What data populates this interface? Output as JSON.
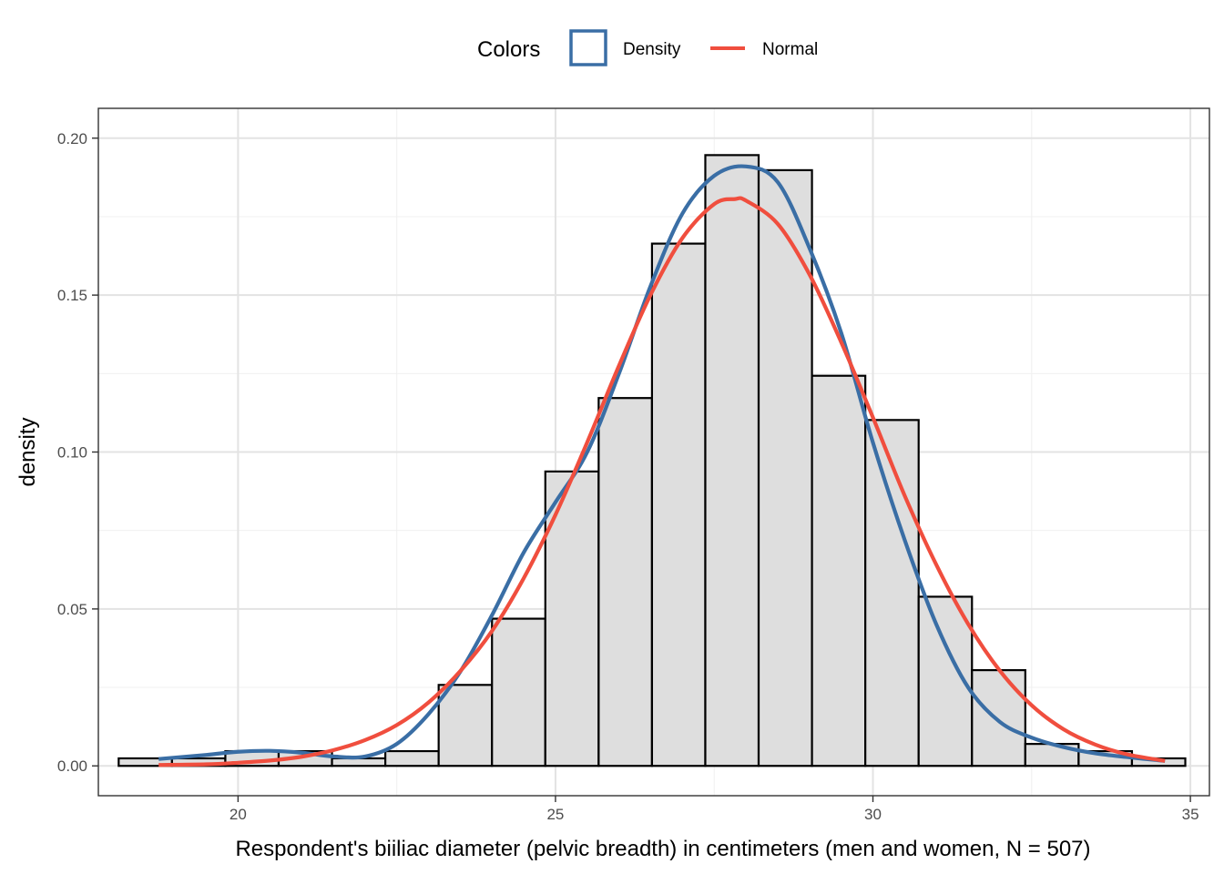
{
  "chart_data": {
    "type": "bar",
    "xlabel": "Respondent's biiliac diameter (pelvic breadth) in centimeters (men and women, N = 507)",
    "ylabel": "density",
    "xlim": [
      17.8,
      35.3
    ],
    "ylim": [
      -0.0095,
      0.2095
    ],
    "x_ticks": [
      20,
      25,
      30,
      35
    ],
    "x_tick_labels": [
      "20",
      "25",
      "30",
      "35"
    ],
    "y_ticks": [
      0.0,
      0.05,
      0.1,
      0.15,
      0.2
    ],
    "y_tick_labels": [
      "0.00",
      "0.05",
      "0.10",
      "0.15",
      "0.20"
    ],
    "grid": true,
    "legend": {
      "title": "Colors",
      "placement": "top",
      "items": [
        {
          "label": "Density",
          "color": "#3a6ea5",
          "symbol": "box"
        },
        {
          "label": "Normal",
          "color": "#f04e3e",
          "symbol": "line"
        }
      ]
    },
    "bin_width": 0.84,
    "bars": [
      {
        "x0": 18.12,
        "x1": 18.96,
        "y": 0.0024
      },
      {
        "x0": 18.96,
        "x1": 19.8,
        "y": 0.0024
      },
      {
        "x0": 19.8,
        "x1": 20.64,
        "y": 0.0047
      },
      {
        "x0": 20.64,
        "x1": 21.48,
        "y": 0.0047
      },
      {
        "x0": 21.48,
        "x1": 22.32,
        "y": 0.0024
      },
      {
        "x0": 22.32,
        "x1": 23.16,
        "y": 0.0047
      },
      {
        "x0": 23.16,
        "x1": 24.0,
        "y": 0.0258
      },
      {
        "x0": 24.0,
        "x1": 24.84,
        "y": 0.0469
      },
      {
        "x0": 24.84,
        "x1": 25.68,
        "y": 0.0938
      },
      {
        "x0": 25.68,
        "x1": 26.52,
        "y": 0.1172
      },
      {
        "x0": 26.52,
        "x1": 27.36,
        "y": 0.1664
      },
      {
        "x0": 27.36,
        "x1": 28.2,
        "y": 0.1946
      },
      {
        "x0": 28.2,
        "x1": 29.04,
        "y": 0.1898
      },
      {
        "x0": 29.04,
        "x1": 29.88,
        "y": 0.1243
      },
      {
        "x0": 29.88,
        "x1": 30.72,
        "y": 0.1102
      },
      {
        "x0": 30.72,
        "x1": 31.56,
        "y": 0.0539
      },
      {
        "x0": 31.56,
        "x1": 32.4,
        "y": 0.0305
      },
      {
        "x0": 32.4,
        "x1": 33.24,
        "y": 0.007
      },
      {
        "x0": 33.24,
        "x1": 34.08,
        "y": 0.0047
      },
      {
        "x0": 34.08,
        "x1": 34.92,
        "y": 0.0024
      }
    ],
    "series": [
      {
        "name": "Density",
        "color": "#3a6ea5",
        "x": [
          18.75,
          19.5,
          20.0,
          20.5,
          21.0,
          21.5,
          22.0,
          22.5,
          23.0,
          23.5,
          24.0,
          24.5,
          25.0,
          25.5,
          26.0,
          26.5,
          27.0,
          27.5,
          28.0,
          28.5,
          29.0,
          29.5,
          30.0,
          30.5,
          31.0,
          31.5,
          32.0,
          32.5,
          33.0,
          33.5,
          34.0,
          34.6
        ],
        "y": [
          0.0022,
          0.0035,
          0.0045,
          0.0048,
          0.0042,
          0.003,
          0.003,
          0.007,
          0.0165,
          0.03,
          0.048,
          0.068,
          0.084,
          0.1,
          0.125,
          0.153,
          0.176,
          0.188,
          0.191,
          0.186,
          0.165,
          0.138,
          0.103,
          0.072,
          0.045,
          0.025,
          0.014,
          0.009,
          0.006,
          0.004,
          0.0028,
          0.0016
        ]
      },
      {
        "name": "Normal",
        "color": "#f04e3e",
        "x": [
          18.75,
          19.5,
          20.0,
          20.5,
          21.0,
          21.5,
          22.0,
          22.5,
          23.0,
          23.5,
          24.0,
          24.5,
          25.0,
          25.5,
          26.0,
          26.5,
          27.0,
          27.5,
          27.83,
          28.0,
          28.5,
          29.0,
          29.5,
          30.0,
          30.5,
          31.0,
          31.5,
          32.0,
          32.5,
          33.0,
          33.5,
          34.0,
          34.6
        ],
        "y": [
          0.0003,
          0.0005,
          0.001,
          0.0017,
          0.0029,
          0.005,
          0.0082,
          0.013,
          0.0202,
          0.0302,
          0.043,
          0.0598,
          0.08,
          0.1031,
          0.1275,
          0.1502,
          0.1682,
          0.179,
          0.1806,
          0.1801,
          0.1727,
          0.1566,
          0.135,
          0.111,
          0.0861,
          0.064,
          0.0452,
          0.0303,
          0.0193,
          0.0117,
          0.0068,
          0.0037,
          0.0016
        ]
      }
    ]
  }
}
